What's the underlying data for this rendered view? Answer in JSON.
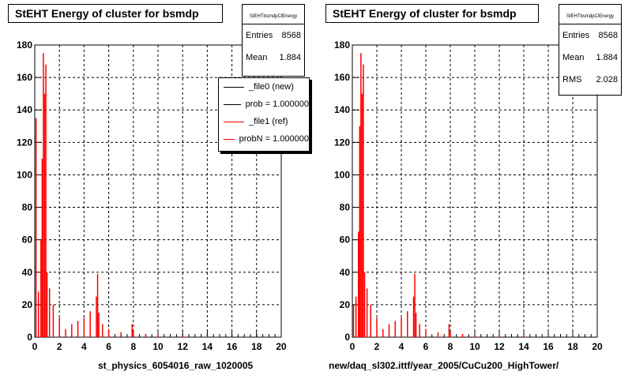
{
  "left_pad": {
    "title": "StEHT Energy of cluster for bsmdp",
    "stats": {
      "header": "StEHTbsmdpClEnergy",
      "rows": [
        {
          "label": "Entries",
          "value": "8568"
        },
        {
          "label": "Mean",
          "value": "1.884"
        }
      ]
    },
    "legend": [
      {
        "label": "_file0 (new)",
        "color": "#000000"
      },
      {
        "label": "prob = 1.000000",
        "color": "#000000"
      },
      {
        "label": "_file1 (ref)",
        "color": "#ff0000"
      },
      {
        "label": "probN = 1.000000",
        "color": "#ff0000"
      }
    ],
    "xtitle": "st_physics_6054016_raw_1020005"
  },
  "right_pad": {
    "title": "StEHT Energy of cluster for bsmdp",
    "stats": {
      "header": "StEHTbsmdpClEnergy",
      "rows": [
        {
          "label": "Entries",
          "value": "8568"
        },
        {
          "label": "Mean",
          "value": "1.884"
        },
        {
          "label": "RMS",
          "value": "2.028"
        }
      ]
    },
    "xtitle": "new/daq_sl302.ittf/year_2005/CuCu200_HighTower/"
  },
  "chart_data": [
    {
      "type": "bar",
      "title": "StEHT Energy of cluster for bsmdp",
      "xlabel": "st_physics_6054016_raw_1020005",
      "ylabel": "",
      "xlim": [
        0,
        20
      ],
      "ylim": [
        0,
        180
      ],
      "xticks": [
        "0",
        "2",
        "4",
        "6",
        "8",
        "10",
        "12",
        "14",
        "16",
        "18",
        "20"
      ],
      "yticks": [
        "0",
        "20",
        "40",
        "60",
        "80",
        "100",
        "120",
        "140",
        "160",
        "180"
      ],
      "grid": true,
      "series": [
        {
          "name": "_file1 (ref)",
          "color": "#ff0000",
          "x": [
            0.1,
            0.3,
            0.5,
            0.6,
            0.7,
            0.8,
            0.9,
            1.0,
            1.2,
            1.5,
            2.0,
            2.5,
            3.0,
            3.5,
            4.0,
            4.5,
            5.0,
            5.1,
            5.2,
            5.5,
            6.0,
            7.0,
            7.9,
            8.0,
            9.0,
            10.0,
            12.0,
            14.0,
            16.0,
            18.0
          ],
          "y": [
            135,
            28,
            60,
            110,
            175,
            150,
            168,
            40,
            30,
            20,
            12,
            5,
            8,
            10,
            12,
            16,
            25,
            39,
            15,
            8,
            5,
            3,
            8,
            3,
            2,
            1,
            1,
            1,
            0,
            0
          ]
        }
      ]
    },
    {
      "type": "bar",
      "title": "StEHT Energy of cluster for bsmdp",
      "xlabel": "new/daq_sl302.ittf/year_2005/CuCu200_HighTower/",
      "ylabel": "",
      "xlim": [
        0,
        20
      ],
      "ylim": [
        0,
        180
      ],
      "xticks": [
        "0",
        "2",
        "4",
        "6",
        "8",
        "10",
        "12",
        "14",
        "16",
        "18",
        "20"
      ],
      "yticks": [
        "0",
        "20",
        "40",
        "60",
        "80",
        "100",
        "120",
        "140",
        "160",
        "180"
      ],
      "grid": true,
      "series": [
        {
          "name": "",
          "color": "#ff0000",
          "x": [
            0.1,
            0.3,
            0.5,
            0.6,
            0.7,
            0.8,
            0.9,
            1.0,
            1.2,
            1.5,
            2.0,
            2.5,
            3.0,
            3.5,
            4.0,
            4.5,
            5.0,
            5.1,
            5.2,
            5.5,
            6.0,
            7.0,
            7.9,
            8.0,
            9.0,
            10.0,
            12.0,
            14.0,
            16.0,
            18.0
          ],
          "y": [
            20,
            25,
            65,
            130,
            175,
            150,
            168,
            40,
            30,
            20,
            12,
            5,
            8,
            10,
            12,
            16,
            25,
            39,
            15,
            8,
            5,
            3,
            8,
            3,
            2,
            1,
            1,
            1,
            0,
            0
          ]
        }
      ]
    }
  ]
}
